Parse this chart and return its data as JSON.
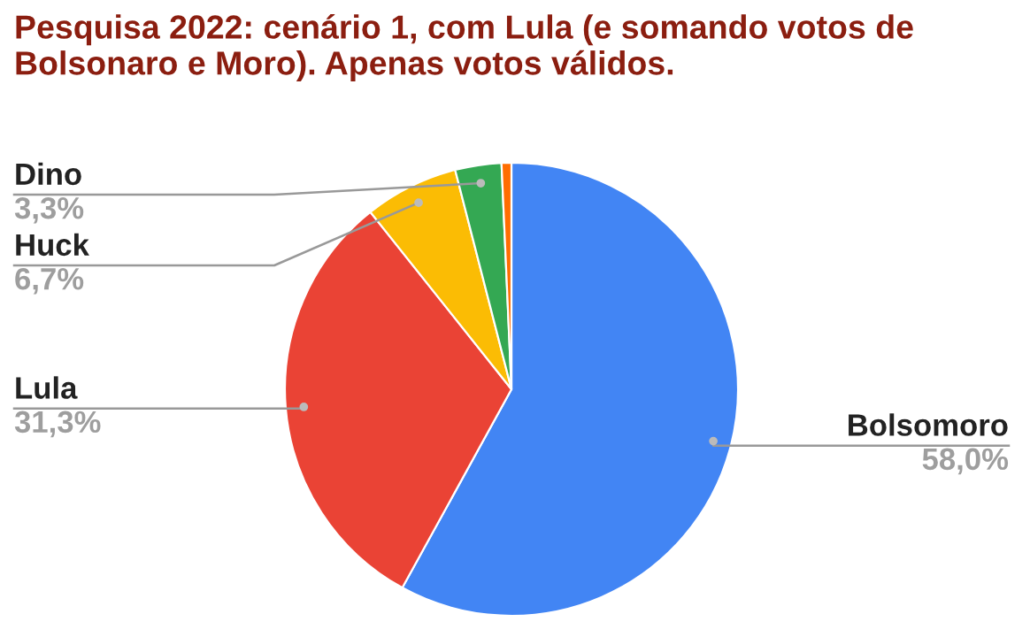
{
  "chart_data": {
    "type": "pie",
    "title": "Pesquisa 2022: cenário 1, com Lula (e somando votos de Bolsonaro e Moro). Apenas votos válidos.",
    "categories": [
      "Bolsomoro",
      "Lula",
      "Huck",
      "Dino",
      null
    ],
    "values": [
      58.0,
      31.3,
      6.7,
      3.3,
      0.7
    ],
    "colors": [
      "#4285f4",
      "#ea4335",
      "#fbbc04",
      "#34a853",
      "#ff6d01"
    ],
    "value_labels": [
      "58,0%",
      "31,3%",
      "6,7%",
      "3,3%",
      null
    ]
  }
}
